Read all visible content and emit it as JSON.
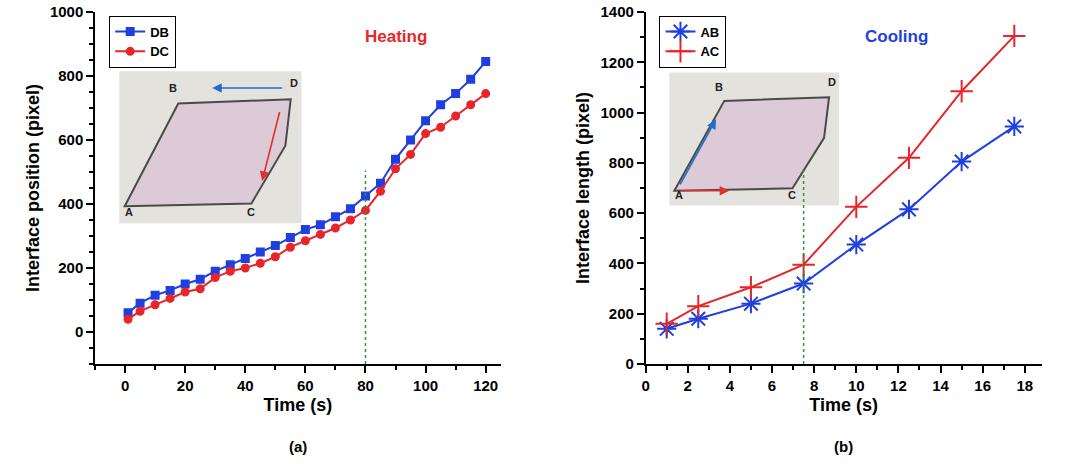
{
  "chart_data": [
    {
      "type": "line",
      "panel_label": "(a)",
      "annotation": "Heating",
      "x_label": "Time (s)",
      "y_label": "Interface position (pixel)",
      "xlim": [
        -10,
        125
      ],
      "xticks": [
        0,
        20,
        40,
        60,
        80,
        100,
        120
      ],
      "ylim": [
        -100,
        1000
      ],
      "yticks": [
        0,
        200,
        400,
        600,
        800,
        1000
      ],
      "legend": "top left",
      "vline": 80,
      "inset_labels": [
        "A",
        "B",
        "C",
        "D"
      ],
      "x": [
        1,
        5,
        10,
        15,
        20,
        25,
        30,
        35,
        40,
        45,
        50,
        55,
        60,
        65,
        70,
        75,
        80,
        85,
        90,
        95,
        100,
        105,
        110,
        115,
        120
      ],
      "series": [
        {
          "name": "DB",
          "color": "#1f3fe0",
          "marker": "square",
          "line_style": "solid",
          "values": [
            60,
            90,
            115,
            130,
            150,
            165,
            190,
            210,
            230,
            250,
            270,
            295,
            320,
            335,
            360,
            385,
            425,
            465,
            540,
            600,
            660,
            710,
            745,
            790,
            845
          ]
        },
        {
          "name": "DC",
          "color": "#e8252a",
          "marker": "circle",
          "line_style": "solid",
          "values": [
            40,
            65,
            85,
            105,
            125,
            135,
            170,
            190,
            200,
            215,
            235,
            265,
            285,
            305,
            325,
            350,
            380,
            440,
            510,
            555,
            620,
            640,
            675,
            710,
            745
          ]
        }
      ]
    },
    {
      "type": "line",
      "panel_label": "(b)",
      "annotation": "Cooling",
      "x_label": "Time (s)",
      "y_label": "Interface length (pixel)",
      "xlim": [
        0,
        18.8
      ],
      "xticks": [
        0,
        2,
        4,
        6,
        8,
        10,
        12,
        14,
        16,
        18
      ],
      "ylim": [
        0,
        1400
      ],
      "yticks": [
        0,
        200,
        400,
        600,
        800,
        1000,
        1200,
        1400
      ],
      "legend": "top left",
      "vline": 7.5,
      "inset_labels": [
        "A",
        "B",
        "C",
        "D"
      ],
      "x": [
        1,
        2.5,
        5,
        7.5,
        10,
        12.5,
        15,
        17.5
      ],
      "series": [
        {
          "name": "AB",
          "color": "#1f3fe0",
          "marker": "asterisk",
          "line_style": "solid",
          "values": [
            140,
            180,
            240,
            320,
            475,
            615,
            805,
            945
          ]
        },
        {
          "name": "AC",
          "color": "#e8252a",
          "marker": "cross",
          "line_style": "solid",
          "values": [
            160,
            230,
            305,
            395,
            625,
            820,
            1085,
            1305
          ]
        }
      ]
    }
  ]
}
